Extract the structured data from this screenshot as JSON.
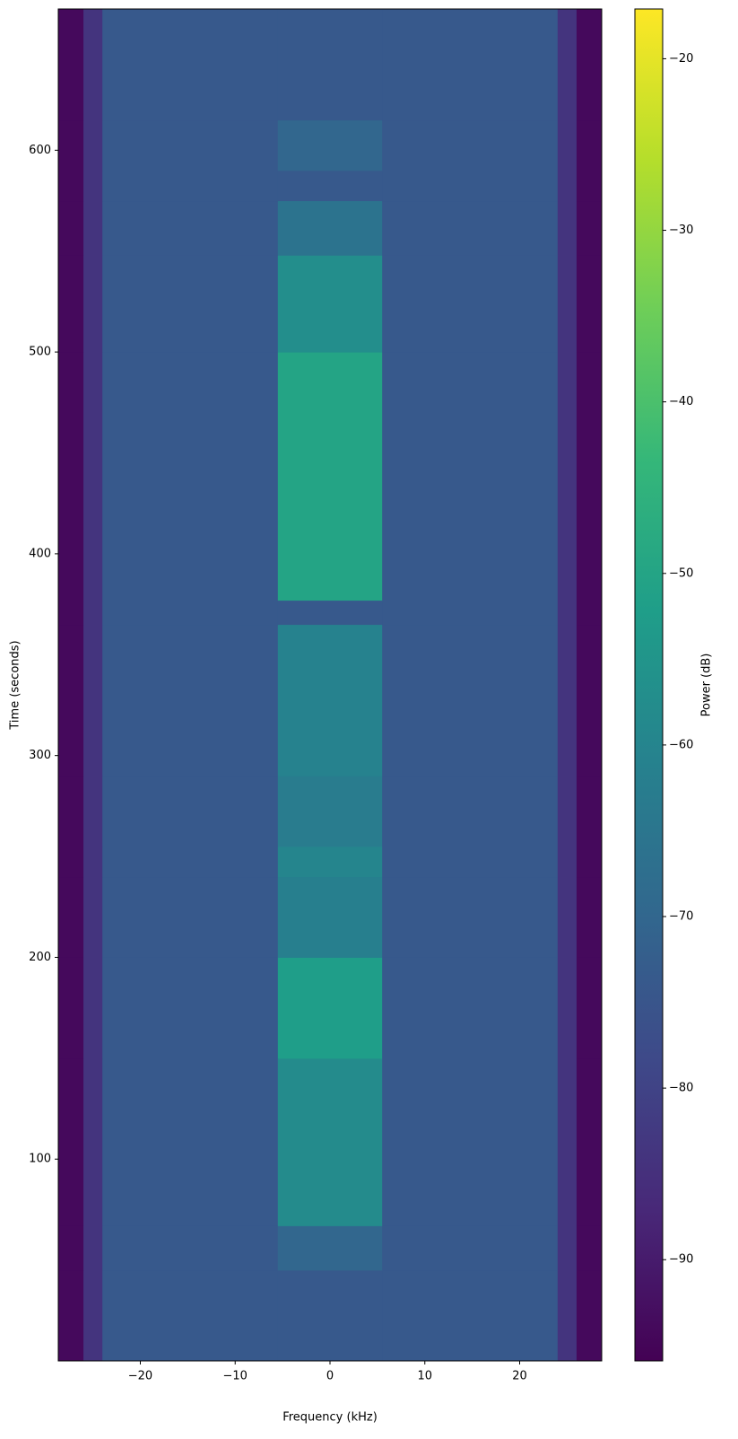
{
  "chart_data": {
    "type": "spectrogram",
    "xlabel": "Frequency (kHz)",
    "ylabel": "Time (seconds)",
    "colorbar_label": "Power (dB)",
    "colormap": "viridis",
    "xlim": [
      -28.65,
      28.65
    ],
    "xticks": [
      {
        "value": -20,
        "label": "−20"
      },
      {
        "value": -10,
        "label": "−10"
      },
      0,
      10,
      20
    ],
    "ylim": [
      0,
      670
    ],
    "yticks": [
      100,
      200,
      300,
      400,
      500,
      600
    ],
    "clim": [
      -95.9,
      -17.1
    ],
    "cticks": [
      {
        "value": -90,
        "label": "−90"
      },
      {
        "value": -80,
        "label": "−80"
      },
      {
        "value": -70,
        "label": "−70"
      },
      {
        "value": -60,
        "label": "−60"
      },
      {
        "value": -50,
        "label": "−50"
      },
      {
        "value": -40,
        "label": "−40"
      },
      {
        "value": -30,
        "label": "−30"
      },
      {
        "value": -20,
        "label": "−20"
      }
    ],
    "xbins": [
      -28.65,
      -26,
      -24,
      -5.5,
      5.5,
      24,
      26,
      28.65
    ],
    "ybins": [
      0,
      45,
      67,
      150,
      200,
      240,
      255,
      290,
      365,
      377,
      500,
      548,
      575,
      590,
      615,
      670
    ],
    "z": [
      [
        -94,
        -84,
        -74,
        -74,
        -74,
        -84,
        -94
      ],
      [
        -94,
        -84,
        -74,
        -70,
        -74,
        -84,
        -94
      ],
      [
        -94,
        -84,
        -74,
        -58,
        -74,
        -84,
        -94
      ],
      [
        -94,
        -84,
        -74,
        -52,
        -74,
        -84,
        -94
      ],
      [
        -94,
        -84,
        -74,
        -62,
        -74,
        -84,
        -94
      ],
      [
        -94,
        -84,
        -74,
        -60,
        -74,
        -84,
        -94
      ],
      [
        -94,
        -84,
        -74,
        -63,
        -74,
        -84,
        -94
      ],
      [
        -94,
        -84,
        -74,
        -61,
        -74,
        -84,
        -94
      ],
      [
        -94,
        -84,
        -74,
        -74,
        -74,
        -84,
        -94
      ],
      [
        -94,
        -84,
        -74,
        -50,
        -74,
        -84,
        -94
      ],
      [
        -94,
        -84,
        -74,
        -57,
        -74,
        -84,
        -94
      ],
      [
        -94,
        -84,
        -74,
        -66,
        -74,
        -84,
        -94
      ],
      [
        -94,
        -84,
        -74,
        -74,
        -74,
        -84,
        -94
      ],
      [
        -94,
        -84,
        -74,
        -70,
        -74,
        -84,
        -94
      ],
      [
        -94,
        -84,
        -74,
        -74,
        -74,
        -84,
        -94
      ]
    ]
  }
}
